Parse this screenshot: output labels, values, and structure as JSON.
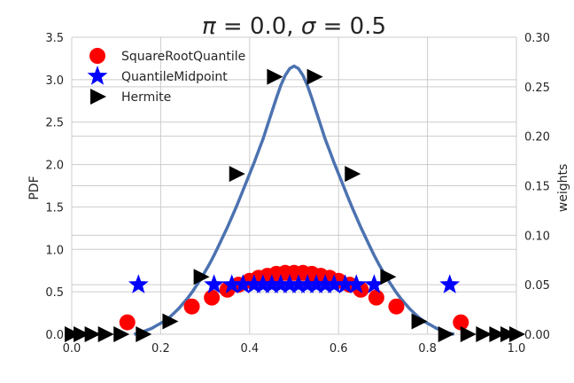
{
  "chart_data": {
    "type": "line+scatter",
    "title": "π = 0.0, σ = 0.5",
    "title_parts": {
      "pi_symbol": "π",
      "pi_value": " = 0.0, ",
      "sigma_symbol": "σ",
      "sigma_value": " = 0.5"
    },
    "xlabel": "",
    "ylabel_left": "PDF",
    "ylabel_right": "weights",
    "xlim": [
      0.0,
      1.0
    ],
    "ylim_left": [
      0.0,
      3.5
    ],
    "ylim_right": [
      0.0,
      0.3
    ],
    "x_ticks": [
      "0.0",
      "0.2",
      "0.4",
      "0.6",
      "0.8",
      "1.0"
    ],
    "y_left_ticks": [
      "0.0",
      "0.5",
      "1.0",
      "1.5",
      "2.0",
      "2.5",
      "3.0",
      "3.5"
    ],
    "y_right_ticks": [
      "0.00",
      "0.05",
      "0.10",
      "0.15",
      "0.20",
      "0.25",
      "0.30"
    ],
    "grid": true,
    "legend_position": "top-left",
    "pdf_curve": {
      "color": "#4c72b0",
      "axis": "left",
      "x": [
        0.14,
        0.15,
        0.16,
        0.17,
        0.18,
        0.19,
        0.2,
        0.21,
        0.22,
        0.23,
        0.24,
        0.25,
        0.26,
        0.27,
        0.28,
        0.29,
        0.3,
        0.31,
        0.32,
        0.33,
        0.34,
        0.35,
        0.36,
        0.37,
        0.38,
        0.39,
        0.4,
        0.41,
        0.42,
        0.43,
        0.44,
        0.45,
        0.46,
        0.47,
        0.48,
        0.49,
        0.5,
        0.51,
        0.52,
        0.53,
        0.54,
        0.55,
        0.56,
        0.57,
        0.58,
        0.59,
        0.6,
        0.61,
        0.62,
        0.63,
        0.64,
        0.65,
        0.66,
        0.67,
        0.68,
        0.69,
        0.7,
        0.71,
        0.72,
        0.73,
        0.74,
        0.75,
        0.76,
        0.77,
        0.78,
        0.79,
        0.8,
        0.81,
        0.82,
        0.83,
        0.84,
        0.85,
        0.86
      ],
      "y": [
        0.0,
        0.01,
        0.03,
        0.05,
        0.07,
        0.1,
        0.13,
        0.16,
        0.2,
        0.25,
        0.3,
        0.36,
        0.42,
        0.49,
        0.57,
        0.65,
        0.74,
        0.83,
        0.93,
        1.04,
        1.15,
        1.26,
        1.38,
        1.5,
        1.63,
        1.76,
        1.89,
        2.02,
        2.16,
        2.3,
        2.46,
        2.62,
        2.78,
        2.93,
        3.05,
        3.13,
        3.16,
        3.13,
        3.05,
        2.93,
        2.78,
        2.62,
        2.46,
        2.3,
        2.16,
        2.02,
        1.89,
        1.76,
        1.63,
        1.5,
        1.38,
        1.26,
        1.15,
        1.04,
        0.93,
        0.83,
        0.74,
        0.65,
        0.57,
        0.49,
        0.42,
        0.36,
        0.3,
        0.25,
        0.2,
        0.16,
        0.13,
        0.1,
        0.07,
        0.05,
        0.03,
        0.01,
        0.0
      ]
    },
    "series": [
      {
        "name": "SquareRootQuantile",
        "marker": "circle",
        "color": "#ff0000",
        "axis": "right",
        "x": [
          0.125,
          0.27,
          0.315,
          0.35,
          0.375,
          0.4,
          0.42,
          0.44,
          0.46,
          0.48,
          0.5,
          0.52,
          0.54,
          0.56,
          0.58,
          0.6,
          0.625,
          0.65,
          0.685,
          0.73,
          0.875
        ],
        "y": [
          0.012,
          0.028,
          0.037,
          0.045,
          0.05,
          0.054,
          0.057,
          0.059,
          0.061,
          0.062,
          0.062,
          0.062,
          0.061,
          0.059,
          0.057,
          0.054,
          0.05,
          0.045,
          0.037,
          0.028,
          0.012
        ]
      },
      {
        "name": "QuantileMidpoint",
        "marker": "star",
        "color": "#0000ff",
        "axis": "right",
        "x": [
          0.15,
          0.32,
          0.36,
          0.385,
          0.41,
          0.43,
          0.45,
          0.47,
          0.49,
          0.51,
          0.53,
          0.55,
          0.57,
          0.59,
          0.615,
          0.64,
          0.68,
          0.85
        ],
        "y": [
          0.05,
          0.05,
          0.05,
          0.05,
          0.05,
          0.05,
          0.05,
          0.05,
          0.05,
          0.05,
          0.05,
          0.05,
          0.05,
          0.05,
          0.05,
          0.05,
          0.05,
          0.05
        ]
      },
      {
        "name": "Hermite",
        "marker": "triangle-right",
        "color": "#000000",
        "axis": "right",
        "x": [
          0.0,
          0.02,
          0.045,
          0.075,
          0.11,
          0.16,
          0.22,
          0.29,
          0.37,
          0.455,
          0.545,
          0.63,
          0.71,
          0.78,
          0.84,
          0.89,
          0.925,
          0.955,
          0.98,
          1.0
        ],
        "y": [
          0.0,
          0.0,
          0.0,
          0.0,
          0.0,
          0.0,
          0.013,
          0.058,
          0.162,
          0.26,
          0.26,
          0.162,
          0.058,
          0.013,
          0.0,
          0.0,
          0.0,
          0.0,
          0.0,
          0.0
        ]
      }
    ]
  }
}
